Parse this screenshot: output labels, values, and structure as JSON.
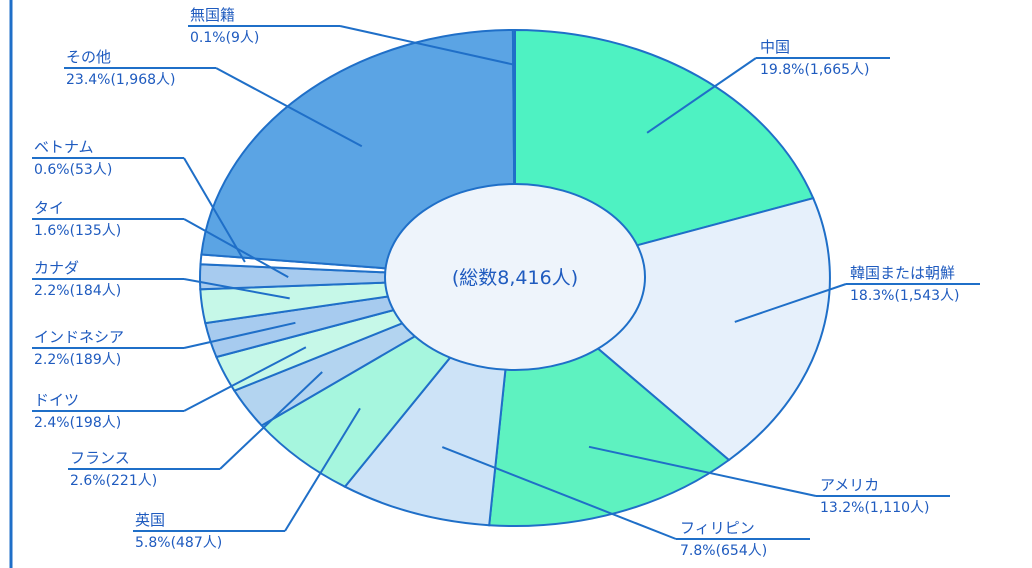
{
  "chart_data": {
    "type": "pie",
    "style": "donut",
    "center_label": "(総数8,416人)",
    "slices": [
      {
        "name": "中国",
        "label": "19.8%(1,665人)",
        "percent": 19.8,
        "count": 1665,
        "color": "#4ef2c2"
      },
      {
        "name": "韓国または朝鮮",
        "label": "18.3%(1,543人)",
        "percent": 18.3,
        "count": 1543,
        "color": "#e6f0fb"
      },
      {
        "name": "アメリカ",
        "label": "13.2%(1,110人)",
        "percent": 13.2,
        "count": 1110,
        "color": "#5ef2c0"
      },
      {
        "name": "フィリピン",
        "label": "7.8%(654人)",
        "percent": 7.8,
        "count": 654,
        "color": "#cde3f7"
      },
      {
        "name": "英国",
        "label": "5.8%(487人)",
        "percent": 5.8,
        "count": 487,
        "color": "#a6f6de"
      },
      {
        "name": "フランス",
        "label": "2.6%(221人)",
        "percent": 2.6,
        "count": 221,
        "color": "#b3d4f0"
      },
      {
        "name": "ドイツ",
        "label": "2.4%(198人)",
        "percent": 2.4,
        "count": 198,
        "color": "#c6f8e8"
      },
      {
        "name": "インドネシア",
        "label": "2.2%(189人)",
        "percent": 2.2,
        "count": 189,
        "color": "#a7cbef"
      },
      {
        "name": "カナダ",
        "label": "2.2%(184人)",
        "percent": 2.2,
        "count": 184,
        "color": "#c6f8e8"
      },
      {
        "name": "タイ",
        "label": "1.6%(135人)",
        "percent": 1.6,
        "count": 135,
        "color": "#a7cbef"
      },
      {
        "name": "ベトナム",
        "label": "0.6%(53人)",
        "percent": 0.6,
        "count": 53,
        "color": "#ffffff"
      },
      {
        "name": "その他",
        "label": "23.4%(1,968人)",
        "percent": 23.4,
        "count": 1968,
        "color": "#5ba4e4"
      },
      {
        "name": "無国籍",
        "label": "0.1%(9人)",
        "percent": 0.1,
        "count": 9,
        "color": "#5ba4e4"
      }
    ],
    "colors": {
      "outline": "#1f6fc8",
      "text": "#1f5bbf",
      "leader": "#1f6fc8",
      "center_fill": "#eef4fb"
    }
  }
}
